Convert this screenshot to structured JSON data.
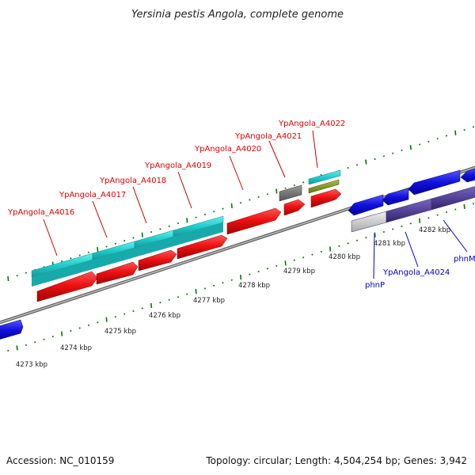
{
  "title": "Yersinia pestis Angola, complete genome",
  "footer": {
    "accession": "Accession: NC_010159",
    "summary": "Topology: circular; Length: 4,504,254 bp; Genes: 3,942"
  },
  "map": {
    "unit": "kbp",
    "tick_labels": [
      "4273 kbp",
      "4274 kbp",
      "4275 kbp",
      "4276 kbp",
      "4277 kbp",
      "4278 kbp",
      "4279 kbp",
      "4280 kbp",
      "4281 kbp",
      "4282 kbp"
    ],
    "gene_labels": [
      {
        "name": "YpAngola_A4016",
        "color": "#e00000"
      },
      {
        "name": "YpAngola_A4017",
        "color": "#e00000"
      },
      {
        "name": "YpAngola_A4018",
        "color": "#e00000"
      },
      {
        "name": "YpAngola_A4019",
        "color": "#e00000"
      },
      {
        "name": "YpAngola_A4020",
        "color": "#e00000"
      },
      {
        "name": "YpAngola_A4021",
        "color": "#e00000"
      },
      {
        "name": "YpAngola_A4022",
        "color": "#e00000"
      },
      {
        "name": "phnP",
        "color": "#0000cc"
      },
      {
        "name": "YpAngola_A4024",
        "color": "#0000cc"
      },
      {
        "name": "phnM",
        "color": "#0000cc"
      }
    ]
  },
  "colors": {
    "forward_gene": "#ee1111",
    "cds_cyan": "#22cccc",
    "reverse_gene": "#1111dd",
    "reverse_purple": "#554499",
    "grey_feature": "#777777",
    "olive_feature": "#889922",
    "backbone": "#888888",
    "tick_green": "#007700"
  }
}
